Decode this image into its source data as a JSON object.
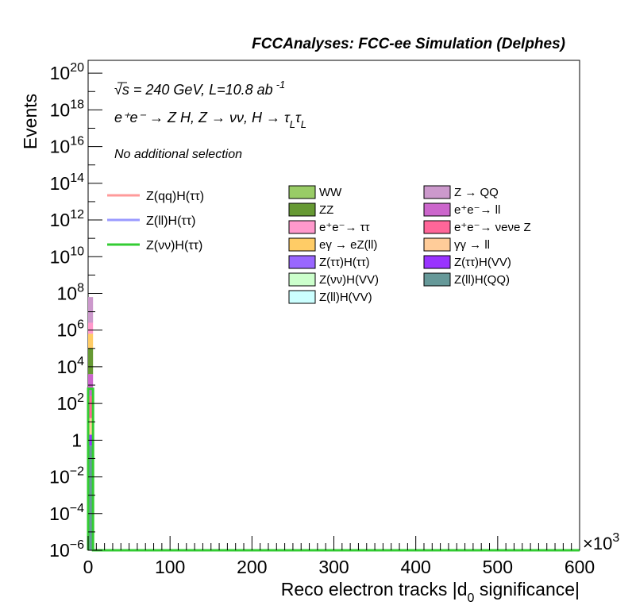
{
  "chart_data": {
    "type": "bar",
    "title": "FCCAnalyses: FCC-ee Simulation (Delphes)",
    "xlabel": "Reco electron tracks |d",
    "xlabel_sub": "0",
    "xlabel_tail": " significance|",
    "ylabel": "Events",
    "x_exponent": "×10",
    "x_exponent_sup": "3",
    "xlim": [
      0,
      600
    ],
    "ylim_log10": [
      -6,
      20.7
    ],
    "y_scale": "log",
    "x_ticks": [
      "0",
      "100",
      "200",
      "300",
      "400",
      "500",
      "600"
    ],
    "x_tick_values": [
      0,
      100,
      200,
      300,
      400,
      500,
      600
    ],
    "y_ticks": [
      {
        "exp": -6,
        "base": "10",
        "sup": "−6"
      },
      {
        "exp": -4,
        "base": "10",
        "sup": "−4"
      },
      {
        "exp": -2,
        "base": "10",
        "sup": "−2"
      },
      {
        "exp": 0,
        "base": "1",
        "sup": ""
      },
      {
        "exp": 2,
        "base": "10",
        "sup": "2"
      },
      {
        "exp": 4,
        "base": "10",
        "sup": "4"
      },
      {
        "exp": 6,
        "base": "10",
        "sup": "6"
      },
      {
        "exp": 8,
        "base": "10",
        "sup": "8"
      },
      {
        "exp": 10,
        "base": "10",
        "sup": "10"
      },
      {
        "exp": 12,
        "base": "10",
        "sup": "12"
      },
      {
        "exp": 14,
        "base": "10",
        "sup": "14"
      },
      {
        "exp": 16,
        "base": "10",
        "sup": "16"
      },
      {
        "exp": 18,
        "base": "10",
        "sup": "18"
      },
      {
        "exp": 20,
        "base": "10",
        "sup": "20"
      }
    ],
    "annotations": {
      "energy": "√s = 240 GeV, L=10.8 ab",
      "energy_sup": "-1",
      "process": "e⁺e⁻ → Z H, Z → νν, H → τ",
      "process_sub1": "L",
      "process_mid": "τ",
      "process_sub2": "L",
      "selection": "No additional selection"
    },
    "signal_series": [
      {
        "name": "Z(qq)H(ττ)",
        "color": "#ff9a9a"
      },
      {
        "name": "Z(ll)H(ττ)",
        "color": "#9a9aff"
      },
      {
        "name": "Z(νν)H(ττ)",
        "color": "#33cc33"
      }
    ],
    "background_series": [
      {
        "name": "WW",
        "color": "#99cc66"
      },
      {
        "name": "ZZ",
        "color": "#669933"
      },
      {
        "name": "e⁺e⁻→ ττ",
        "color": "#ff99cc"
      },
      {
        "name": "eγ → eZ(ll)",
        "color": "#ffcc66"
      },
      {
        "name": "Z(ττ)H(ττ)",
        "color": "#9966ff"
      },
      {
        "name": "Z(νν)H(VV)",
        "color": "#ccffcc"
      },
      {
        "name": "Z(ll)H(VV)",
        "color": "#ccffff"
      },
      {
        "name": "Z → QQ",
        "color": "#cc99cc"
      },
      {
        "name": "e⁺e⁻→ ll",
        "color": "#cc66cc"
      },
      {
        "name": "e⁺e⁻→ νeνe Z",
        "color": "#ff6699"
      },
      {
        "name": "γγ → ll",
        "color": "#ffcc99"
      },
      {
        "name": "Z(ττ)H(VV)",
        "color": "#9933ff"
      },
      {
        "name": "Z(ll)H(QQ)",
        "color": "#669999"
      }
    ],
    "stack_first_bin": {
      "x_range": [
        0,
        6
      ],
      "segments_log10": [
        {
          "name": "Z(ll)H(QQ)",
          "from": -6,
          "to": -0.3,
          "color": "#669999"
        },
        {
          "name": "Z(ττ)H(VV)",
          "from": -0.3,
          "to": 0.3,
          "color": "#9933ff"
        },
        {
          "name": "γγ → ll",
          "from": 0.3,
          "to": 1.2,
          "color": "#ffcc99"
        },
        {
          "name": "e⁺e⁻→ νeνe Z",
          "from": 1.2,
          "to": 2.4,
          "color": "#ff6699"
        },
        {
          "name": "e⁺e⁻→ ll",
          "from": 2.4,
          "to": 3.6,
          "color": "#cc66cc"
        },
        {
          "name": "ZZ",
          "from": 3.6,
          "to": 5.0,
          "color": "#669933"
        },
        {
          "name": "eγ → eZ(ll)",
          "from": 5.0,
          "to": 5.8,
          "color": "#ffcc66"
        },
        {
          "name": "e⁺e⁻→ ττ",
          "from": 5.8,
          "to": 6.4,
          "color": "#ff99cc"
        },
        {
          "name": "Z → QQ",
          "from": 6.4,
          "to": 7.8,
          "color": "#cc99cc"
        }
      ]
    },
    "signal_line": {
      "name": "Z(νν)H(ττ)",
      "color": "#33cc33",
      "bins": [
        {
          "x0": 0,
          "x1": 6,
          "log10": 2.8
        },
        {
          "x0": 6,
          "x1": 600,
          "log10": -6
        }
      ]
    }
  }
}
